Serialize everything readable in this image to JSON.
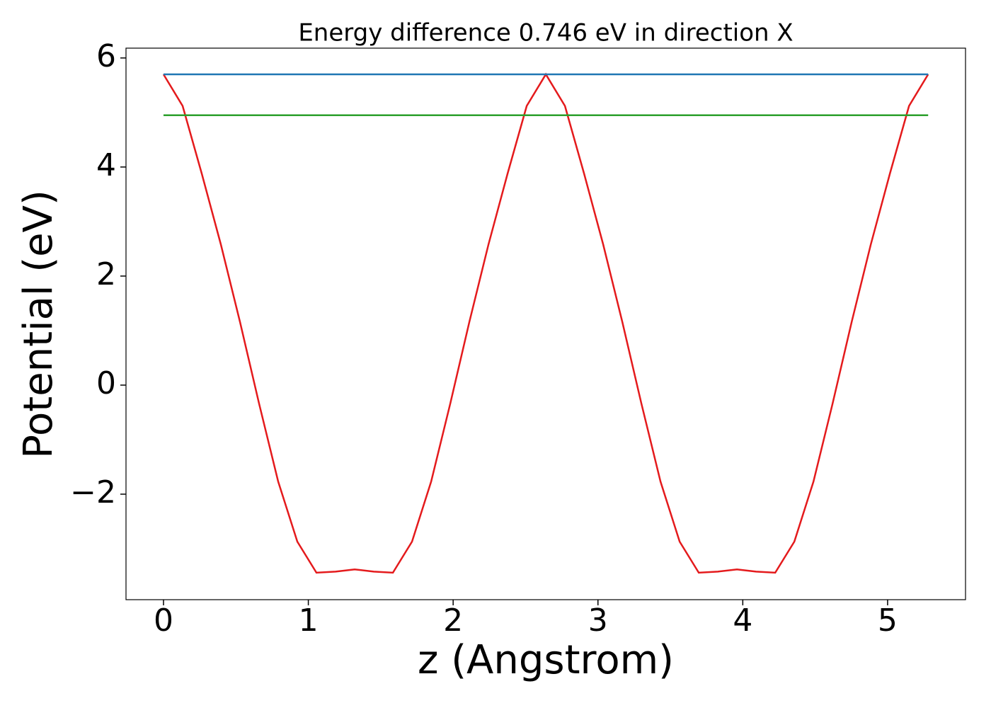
{
  "chart_data": {
    "type": "line",
    "title": "Energy difference 0.746 eV in direction X",
    "xlabel": "z (Angstrom)",
    "ylabel": "Potential (eV)",
    "xlim": [
      -0.259,
      5.538
    ],
    "ylim": [
      -3.935,
      6.18
    ],
    "xticks": [
      0,
      1,
      2,
      3,
      4,
      5
    ],
    "yticks": [
      {
        "value": -2,
        "label": "−2"
      },
      0,
      2,
      4,
      6
    ],
    "series": [
      {
        "color": "#e41a1c",
        "x": [
          0,
          0.132,
          0.264,
          0.396,
          0.528,
          0.66,
          0.792,
          0.924,
          1.056,
          1.188,
          1.32,
          1.452,
          1.584,
          1.716,
          1.848,
          1.98,
          2.112,
          2.244,
          2.376,
          2.508,
          2.64,
          2.772,
          2.904,
          3.036,
          3.168,
          3.3,
          3.432,
          3.564,
          3.696,
          3.828,
          3.96,
          4.092,
          4.224,
          4.356,
          4.488,
          4.62,
          4.752,
          4.884,
          5.016,
          5.148,
          5.28
        ],
        "values": [
          5.7,
          5.12,
          3.88,
          2.58,
          1.16,
          -0.34,
          -1.77,
          -2.87,
          -3.44,
          -3.42,
          -3.38,
          -3.42,
          -3.44,
          -2.87,
          -1.77,
          -0.34,
          1.16,
          2.58,
          3.88,
          5.12,
          5.7,
          5.12,
          3.88,
          2.58,
          1.16,
          -0.34,
          -1.77,
          -2.87,
          -3.44,
          -3.42,
          -3.38,
          -3.42,
          -3.44,
          -2.87,
          -1.77,
          -0.34,
          1.16,
          2.58,
          3.88,
          5.12,
          5.7
        ]
      },
      {
        "color": "#1f77b4",
        "x": [
          0,
          5.28
        ],
        "values": [
          5.7,
          5.7
        ]
      },
      {
        "color": "#2ca02c",
        "x": [
          0,
          5.28
        ],
        "values": [
          4.95,
          4.95
        ]
      }
    ]
  }
}
